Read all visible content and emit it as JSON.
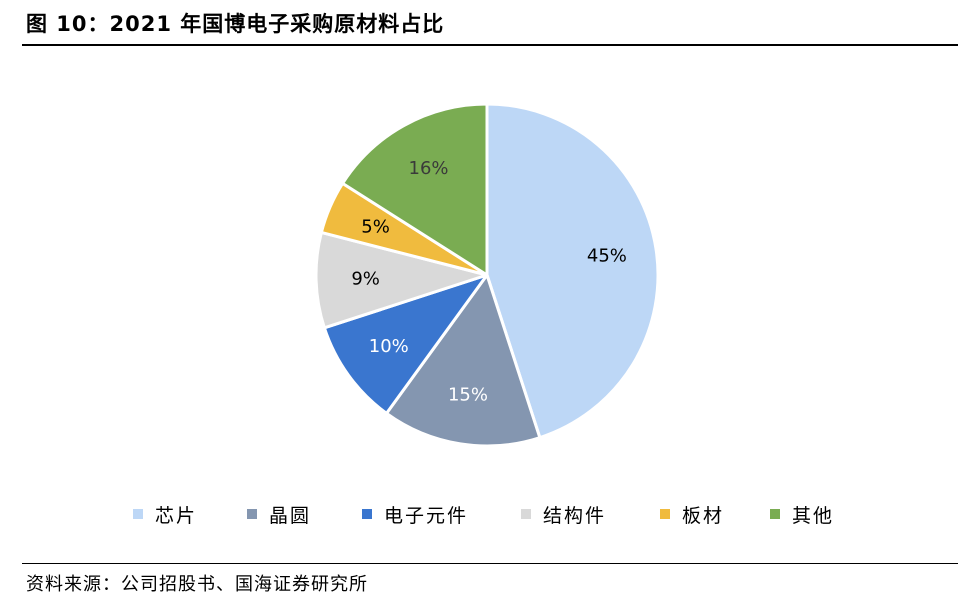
{
  "title": "图 10：2021 年国博电子采购原材料占比",
  "source": "资料来源：公司招股书、国海证券研究所",
  "colors": {
    "slice_stroke": "#ffffff",
    "label_dark": "#000000",
    "label_light": "#ffffff",
    "label_green": "#3a3a3a"
  },
  "chart_data": {
    "type": "pie",
    "title": "",
    "legend_position": "bottom",
    "start_angle_deg": 0,
    "direction": "clockwise",
    "slices": [
      {
        "name": "芯片",
        "value": 45,
        "label": "45%",
        "color": "#bdd7f6",
        "label_color": "#000000"
      },
      {
        "name": "晶圆",
        "value": 15,
        "label": "15%",
        "color": "#8496b0",
        "label_color": "#ffffff"
      },
      {
        "name": "电子元件",
        "value": 10,
        "label": "10%",
        "color": "#3a76cf",
        "label_color": "#ffffff"
      },
      {
        "name": "结构件",
        "value": 9,
        "label": "9%",
        "color": "#d9d9d9",
        "label_color": "#000000"
      },
      {
        "name": "板材",
        "value": 5,
        "label": "5%",
        "color": "#f0bb3e",
        "label_color": "#000000"
      },
      {
        "name": "其他",
        "value": 16,
        "label": "16%",
        "color": "#7aac52",
        "label_color": "#3a3a3a"
      }
    ]
  }
}
